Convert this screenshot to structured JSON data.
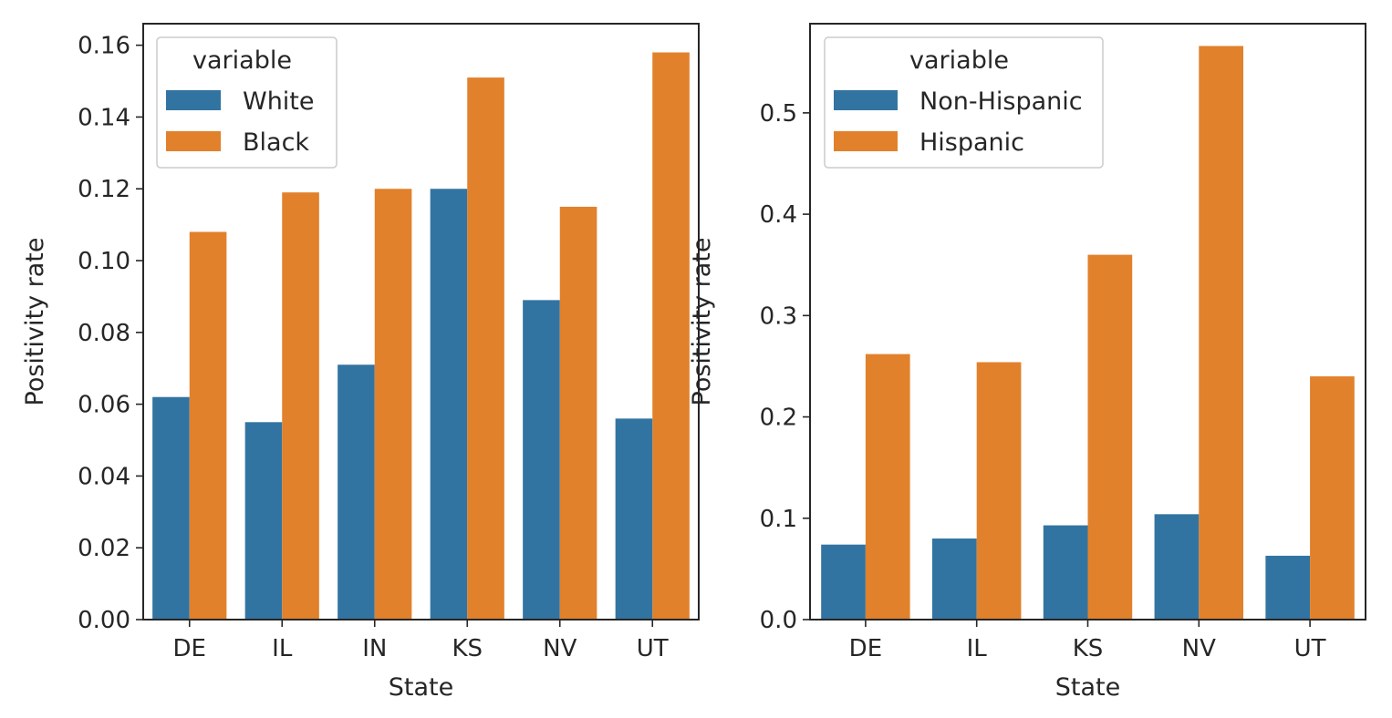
{
  "colors": {
    "series1": "#3274a1",
    "series2": "#e1812c",
    "axis": "#262626"
  },
  "chart_data": [
    {
      "type": "bar",
      "categories": [
        "DE",
        "IL",
        "IN",
        "KS",
        "NV",
        "UT"
      ],
      "series": [
        {
          "name": "White",
          "values": [
            0.062,
            0.055,
            0.071,
            0.12,
            0.089,
            0.056
          ]
        },
        {
          "name": "Black",
          "values": [
            0.108,
            0.119,
            0.12,
            0.151,
            0.115,
            0.158
          ]
        }
      ],
      "xlabel": "State",
      "ylabel": "Positivity rate",
      "ylim": [
        0,
        0.166
      ],
      "yticks": [
        "0.00",
        "0.02",
        "0.04",
        "0.06",
        "0.08",
        "0.10",
        "0.12",
        "0.14",
        "0.16"
      ],
      "legend": {
        "title": "variable",
        "position": "upper-left"
      },
      "grid": false
    },
    {
      "type": "bar",
      "categories": [
        "DE",
        "IL",
        "KS",
        "NV",
        "UT"
      ],
      "series": [
        {
          "name": "Non-Hispanic",
          "values": [
            0.074,
            0.08,
            0.093,
            0.104,
            0.063
          ]
        },
        {
          "name": "Hispanic",
          "values": [
            0.262,
            0.254,
            0.36,
            0.566,
            0.24
          ]
        }
      ],
      "xlabel": "State",
      "ylabel": "Positivity rate",
      "ylim": [
        0,
        0.588
      ],
      "yticks": [
        "0.0",
        "0.1",
        "0.2",
        "0.3",
        "0.4",
        "0.5"
      ],
      "legend": {
        "title": "variable",
        "position": "upper-left"
      },
      "grid": false
    }
  ]
}
